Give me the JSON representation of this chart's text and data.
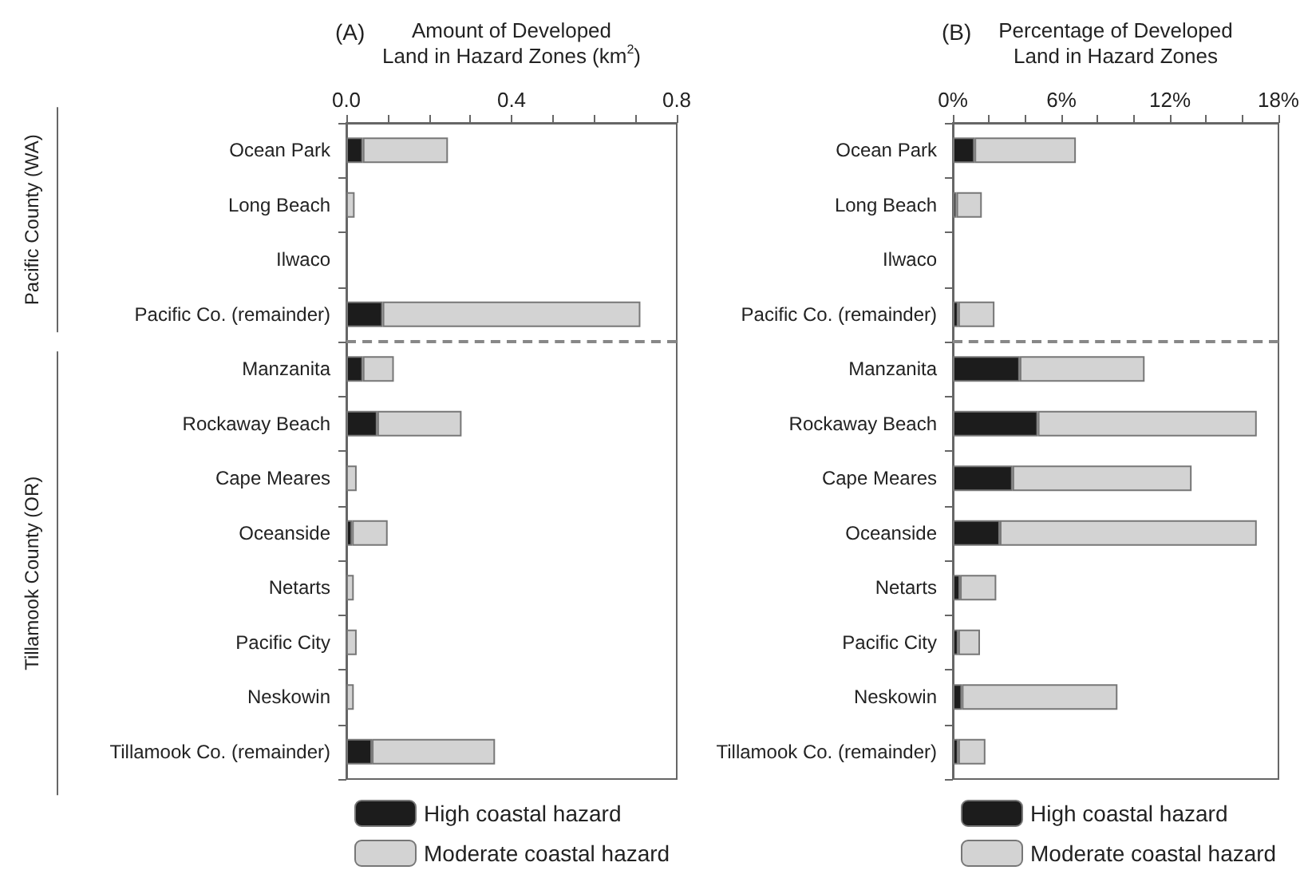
{
  "chart_data": [
    {
      "type": "bar",
      "title": "(A)",
      "xlabel": "Amount of Developed\nLand in Hazard Zones (km$^{2}$)",
      "orientation": "horizontal",
      "stacked": true,
      "categories": [
        "Ocean Park",
        "Long Beach",
        "Ilwaco",
        "Pacific Co. (remainder)",
        "Manzanita",
        "Rockaway Beach",
        "Cape Meares",
        "Oceanside",
        "Netarts",
        "Pacific City",
        "Neskowin",
        "Tillamook Co. (remainder)"
      ],
      "series": [
        {
          "name": "High coastal hazard",
          "color": "#1c1c1c",
          "values": [
            0.04,
            0,
            0,
            0.088,
            0.04,
            0.075,
            0,
            0.014,
            0,
            0,
            0,
            0.062
          ]
        },
        {
          "name": "Moderate coastal hazard",
          "color": "#d3d3d3",
          "values": [
            0.206,
            0.02,
            0,
            0.624,
            0.075,
            0.204,
            0.025,
            0.086,
            0.018,
            0.025,
            0.018,
            0.298
          ]
        }
      ],
      "xlim": [
        0,
        0.8
      ],
      "xticks": [
        {
          "value": 0,
          "label": "0.0"
        },
        {
          "value": 0.1,
          "label": null
        },
        {
          "value": 0.2,
          "label": null
        },
        {
          "value": 0.3,
          "label": null
        },
        {
          "value": 0.4,
          "label": "0.4"
        },
        {
          "value": 0.5,
          "label": null
        },
        {
          "value": 0.6,
          "label": null
        },
        {
          "value": 0.7,
          "label": null
        },
        {
          "value": 0.8,
          "label": "0.8"
        }
      ],
      "annotations": [
        "Pacific County (WA)",
        "Tillamook County (OR)"
      ],
      "grid": false,
      "legend": "bottom left"
    },
    {
      "type": "bar",
      "title": "(B)",
      "xlabel": "Percentage of Developed\nLand in Hazard Zones",
      "orientation": "horizontal",
      "stacked": true,
      "categories": [
        "Ocean Park",
        "Long Beach",
        "Ilwaco",
        "Pacific Co. (remainder)",
        "Manzanita",
        "Rockaway Beach",
        "Cape Meares",
        "Oceanside",
        "Netarts",
        "Pacific City",
        "Neskowin",
        "Tillamook Co. (remainder)"
      ],
      "series": [
        {
          "name": "High coastal hazard",
          "color": "#1c1c1c",
          "values": [
            1.2,
            0.2,
            0,
            0.3,
            3.7,
            4.7,
            3.3,
            2.6,
            0.4,
            0.3,
            0.5,
            0.3
          ]
        },
        {
          "name": "Moderate coastal hazard",
          "color": "#d3d3d3",
          "values": [
            5.6,
            1.4,
            0,
            2.0,
            6.9,
            12.1,
            9.9,
            14.2,
            2.0,
            1.2,
            8.6,
            1.5
          ]
        }
      ],
      "xlim": [
        0,
        18
      ],
      "xticks": [
        {
          "value": 0,
          "label": "0%"
        },
        {
          "value": 2,
          "label": null
        },
        {
          "value": 4,
          "label": null
        },
        {
          "value": 6,
          "label": "6%"
        },
        {
          "value": 8,
          "label": null
        },
        {
          "value": 10,
          "label": null
        },
        {
          "value": 12,
          "label": "12%"
        },
        {
          "value": 14,
          "label": null
        },
        {
          "value": 16,
          "label": null
        },
        {
          "value": 18,
          "label": "18%"
        }
      ],
      "grid": false,
      "legend": "bottom left"
    }
  ]
}
